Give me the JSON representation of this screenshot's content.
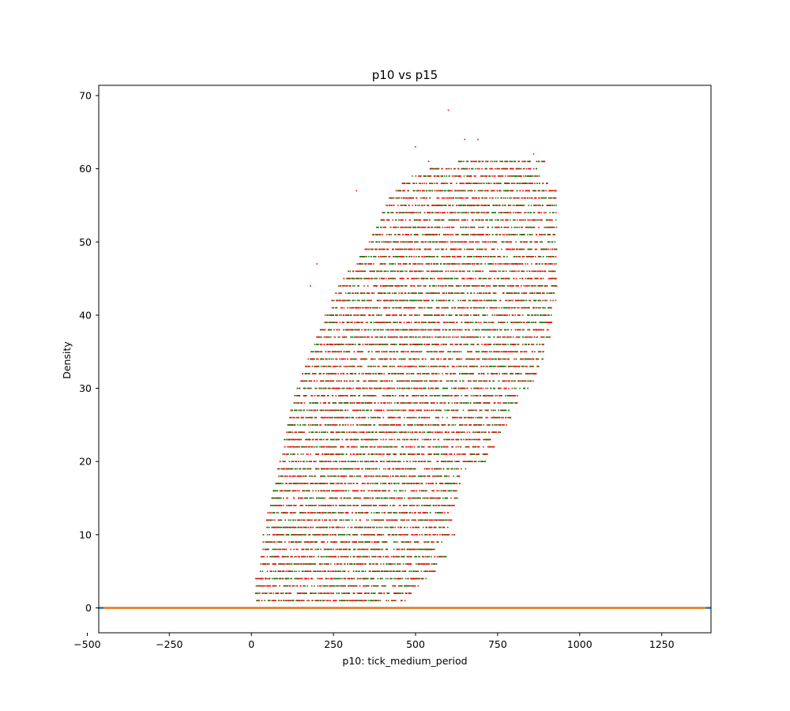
{
  "chart_data": {
    "type": "scatter",
    "title": "p10 vs p15",
    "xlabel": "p10: tick_medium_period",
    "ylabel": "Density",
    "xlim": [
      -465,
      1400
    ],
    "ylim": [
      -3.4,
      71.4
    ],
    "xticks": [
      -500,
      -250,
      0,
      250,
      500,
      750,
      1000,
      1250
    ],
    "xtick_labels": [
      "−500",
      "−250",
      "0",
      "250",
      "500",
      "750",
      "1000",
      "1250"
    ],
    "yticks": [
      0,
      10,
      20,
      30,
      40,
      50,
      60,
      70
    ],
    "ytick_labels": [
      "0",
      "10",
      "20",
      "30",
      "40",
      "50",
      "60",
      "70"
    ],
    "grid": false,
    "colors": {
      "green": "#008000",
      "red": "#ff0000",
      "blue": "#1f77b4",
      "orange": "#ff7f0e"
    },
    "point_cloud": {
      "description_y_levels": "integer densities from 1 to 61 with a few outliers",
      "rows": [
        [
          1,
          12,
          470
        ],
        [
          2,
          10,
          490
        ],
        [
          3,
          14,
          510
        ],
        [
          4,
          12,
          540
        ],
        [
          5,
          25,
          560
        ],
        [
          6,
          28,
          570
        ],
        [
          7,
          30,
          600
        ],
        [
          8,
          32,
          560
        ],
        [
          9,
          35,
          580
        ],
        [
          10,
          35,
          620
        ],
        [
          11,
          40,
          600
        ],
        [
          12,
          45,
          610
        ],
        [
          13,
          50,
          600
        ],
        [
          14,
          55,
          625
        ],
        [
          15,
          60,
          630
        ],
        [
          16,
          65,
          630
        ],
        [
          17,
          70,
          640
        ],
        [
          18,
          75,
          640
        ],
        [
          19,
          80,
          655
        ],
        [
          20,
          85,
          720
        ],
        [
          21,
          95,
          720
        ],
        [
          22,
          100,
          740
        ],
        [
          23,
          100,
          730
        ],
        [
          24,
          105,
          760
        ],
        [
          25,
          110,
          780
        ],
        [
          26,
          115,
          790
        ],
        [
          27,
          120,
          790
        ],
        [
          28,
          125,
          810
        ],
        [
          29,
          130,
          820
        ],
        [
          30,
          140,
          845
        ],
        [
          31,
          150,
          860
        ],
        [
          32,
          155,
          870
        ],
        [
          33,
          165,
          880
        ],
        [
          34,
          170,
          890
        ],
        [
          35,
          180,
          890
        ],
        [
          36,
          185,
          900
        ],
        [
          37,
          195,
          910
        ],
        [
          38,
          205,
          905
        ],
        [
          39,
          215,
          915
        ],
        [
          40,
          225,
          920
        ],
        [
          41,
          240,
          920
        ],
        [
          42,
          245,
          930
        ],
        [
          43,
          255,
          930
        ],
        [
          44,
          265,
          930
        ],
        [
          45,
          280,
          930
        ],
        [
          46,
          295,
          930
        ],
        [
          47,
          320,
          930
        ],
        [
          48,
          330,
          930
        ],
        [
          49,
          345,
          930
        ],
        [
          50,
          355,
          930
        ],
        [
          51,
          370,
          925
        ],
        [
          52,
          380,
          930
        ],
        [
          53,
          390,
          930
        ],
        [
          54,
          400,
          930
        ],
        [
          55,
          410,
          930
        ],
        [
          56,
          420,
          930
        ],
        [
          57,
          440,
          930
        ],
        [
          58,
          460,
          905
        ],
        [
          59,
          490,
          880
        ],
        [
          60,
          540,
          870
        ],
        [
          61,
          630,
          900
        ]
      ],
      "outliers": [
        [
          600,
          68
        ],
        [
          690,
          64
        ],
        [
          650,
          64
        ],
        [
          500,
          63
        ],
        [
          860,
          62
        ],
        [
          890,
          61
        ],
        [
          540,
          61
        ],
        [
          320,
          57
        ],
        [
          200,
          47
        ],
        [
          180,
          44
        ]
      ]
    },
    "series": [
      {
        "name": "",
        "type": "line",
        "color": "#1f77b4",
        "x": [
          -465,
          1400
        ],
        "y": [
          0,
          0
        ]
      },
      {
        "name": "",
        "type": "line",
        "color": "#ff7f0e",
        "x": [
          -450,
          1385
        ],
        "y": [
          0,
          0
        ]
      }
    ]
  }
}
